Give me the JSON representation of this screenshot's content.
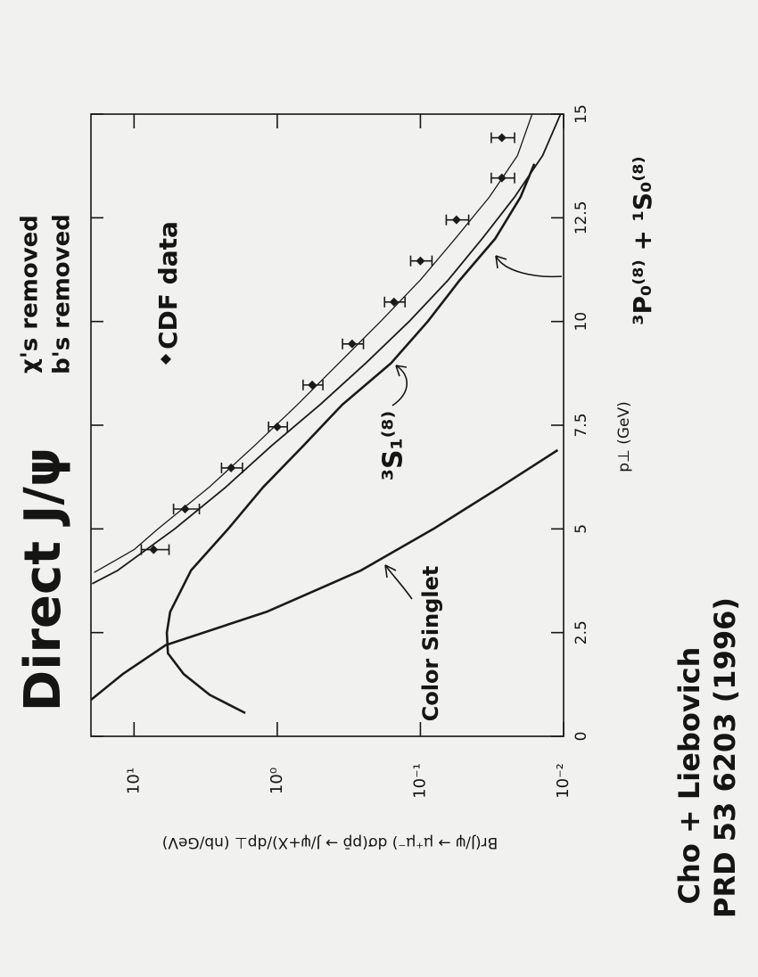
{
  "chart_data": {
    "type": "line",
    "title": "Direct J/ψ",
    "subtitle": [
      "χ's removed",
      "b's removed"
    ],
    "x_label": "p⊥ (GeV)",
    "y_label": "Br(J/ψ → μ⁺μ⁻) dσ(pp̄ → J/ψ+X)/dp⊥ (nb/GeV)",
    "citation": [
      "Cho + Liebovich",
      "PRD 53 6203 (1996)"
    ],
    "log_scale_y": true,
    "xlim": [
      0,
      15
    ],
    "xticks": [
      0,
      2.5,
      5,
      7.5,
      10,
      12.5,
      15
    ],
    "ylim": [
      0.01,
      20
    ],
    "yticks": [
      {
        "value": 10,
        "label": "10¹"
      },
      {
        "value": 1,
        "label": "10⁰"
      },
      {
        "value": 0.1,
        "label": "10⁻¹"
      },
      {
        "value": 0.01,
        "label": "10⁻²"
      }
    ],
    "series": [
      {
        "name": "CDF data",
        "type": "scatter",
        "color": "#1a1a1a",
        "x": [
          4.5,
          5.48,
          6.47,
          7.46,
          8.47,
          9.46,
          10.47,
          11.46,
          12.45,
          13.46,
          14.43
        ],
        "values": [
          7.3,
          4.4,
          2.1,
          1.0,
          0.57,
          0.3,
          0.153,
          0.1,
          0.056,
          0.027,
          0.027
        ],
        "errors": [
          1.6,
          0.9,
          0.35,
          0.15,
          0.09,
          0.05,
          0.025,
          0.017,
          0.01,
          0.005,
          0.005
        ]
      },
      {
        "type": "line",
        "color": "#1a1a1a",
        "width": 1.3,
        "x": [
          3.95,
          4.5,
          5,
          6,
          7,
          8,
          9,
          10,
          11,
          12,
          13,
          14,
          15
        ],
        "values": [
          19,
          10,
          6.8,
          3.0,
          1.45,
          0.72,
          0.37,
          0.19,
          0.1,
          0.057,
          0.033,
          0.021,
          0.0166
        ]
      },
      {
        "name": "³S₁⁽⁸⁾",
        "type": "line",
        "color": "#1a1a1a",
        "width": 1.8,
        "x": [
          3.68,
          4,
          5,
          6,
          7,
          8,
          9,
          10,
          11,
          12,
          13,
          14,
          15
        ],
        "values": [
          19.6,
          13,
          5.2,
          2.3,
          1.1,
          0.5,
          0.24,
          0.12,
          0.064,
          0.037,
          0.022,
          0.014,
          0.0105
        ]
      },
      {
        "name": "³P₀⁽⁸⁾ + ¹S₀⁽⁸⁾",
        "type": "line",
        "color": "#1a1a1a",
        "width": 2.6,
        "x": [
          0.56,
          1,
          1.5,
          2,
          2.5,
          3,
          4,
          5,
          6,
          7,
          8,
          9,
          10,
          11,
          12,
          13,
          13.8
        ],
        "values": [
          1.67,
          2.96,
          4.5,
          5.8,
          5.9,
          5.6,
          4.0,
          2.2,
          1.26,
          0.66,
          0.35,
          0.16,
          0.089,
          0.053,
          0.03,
          0.02,
          0.016
        ]
      },
      {
        "name": "Color Singlet",
        "type": "line",
        "color": "#1a1a1a",
        "width": 2.6,
        "x": [
          0.88,
          1.5,
          2.2,
          3,
          4,
          5,
          6,
          6.9
        ],
        "values": [
          20,
          12,
          6.0,
          1.19,
          0.26,
          0.081,
          0.028,
          0.011
        ]
      }
    ]
  }
}
